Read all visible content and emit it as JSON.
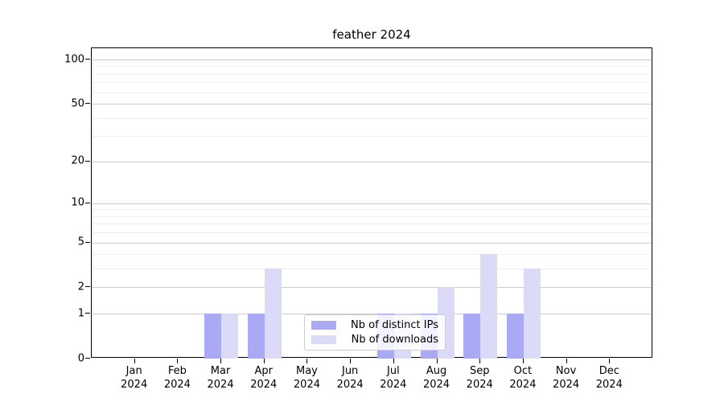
{
  "chart": {
    "title": "feather 2024"
  },
  "chart_data": {
    "type": "bar",
    "title": "feather 2024",
    "months": [
      "Jan",
      "Feb",
      "Mar",
      "Apr",
      "May",
      "Jun",
      "Jul",
      "Aug",
      "Sep",
      "Oct",
      "Nov",
      "Dec"
    ],
    "year": "2024",
    "categories": [
      "Jan 2024",
      "Feb 2024",
      "Mar 2024",
      "Apr 2024",
      "May 2024",
      "Jun 2024",
      "Jul 2024",
      "Aug 2024",
      "Sep 2024",
      "Oct 2024",
      "Nov 2024",
      "Dec 2024"
    ],
    "series": [
      {
        "name": "Nb of distinct IPs",
        "color": "#aaaaf4",
        "values": [
          0,
          0,
          1,
          1,
          0,
          0,
          1,
          1,
          1,
          1,
          0,
          0
        ]
      },
      {
        "name": "Nb of downloads",
        "color": "#dbdbf8",
        "values": [
          0,
          0,
          1,
          3,
          0,
          0,
          1,
          2,
          4,
          3,
          0,
          0
        ]
      }
    ],
    "yscale": "log1p",
    "yticks": [
      0,
      1,
      2,
      5,
      10,
      20,
      50,
      100
    ],
    "yticks_minor": [
      3,
      4,
      6,
      7,
      8,
      9,
      30,
      40,
      60,
      70,
      80,
      90
    ],
    "ylim": [
      0,
      118
    ],
    "grid": true,
    "legend_position": "lower center"
  }
}
